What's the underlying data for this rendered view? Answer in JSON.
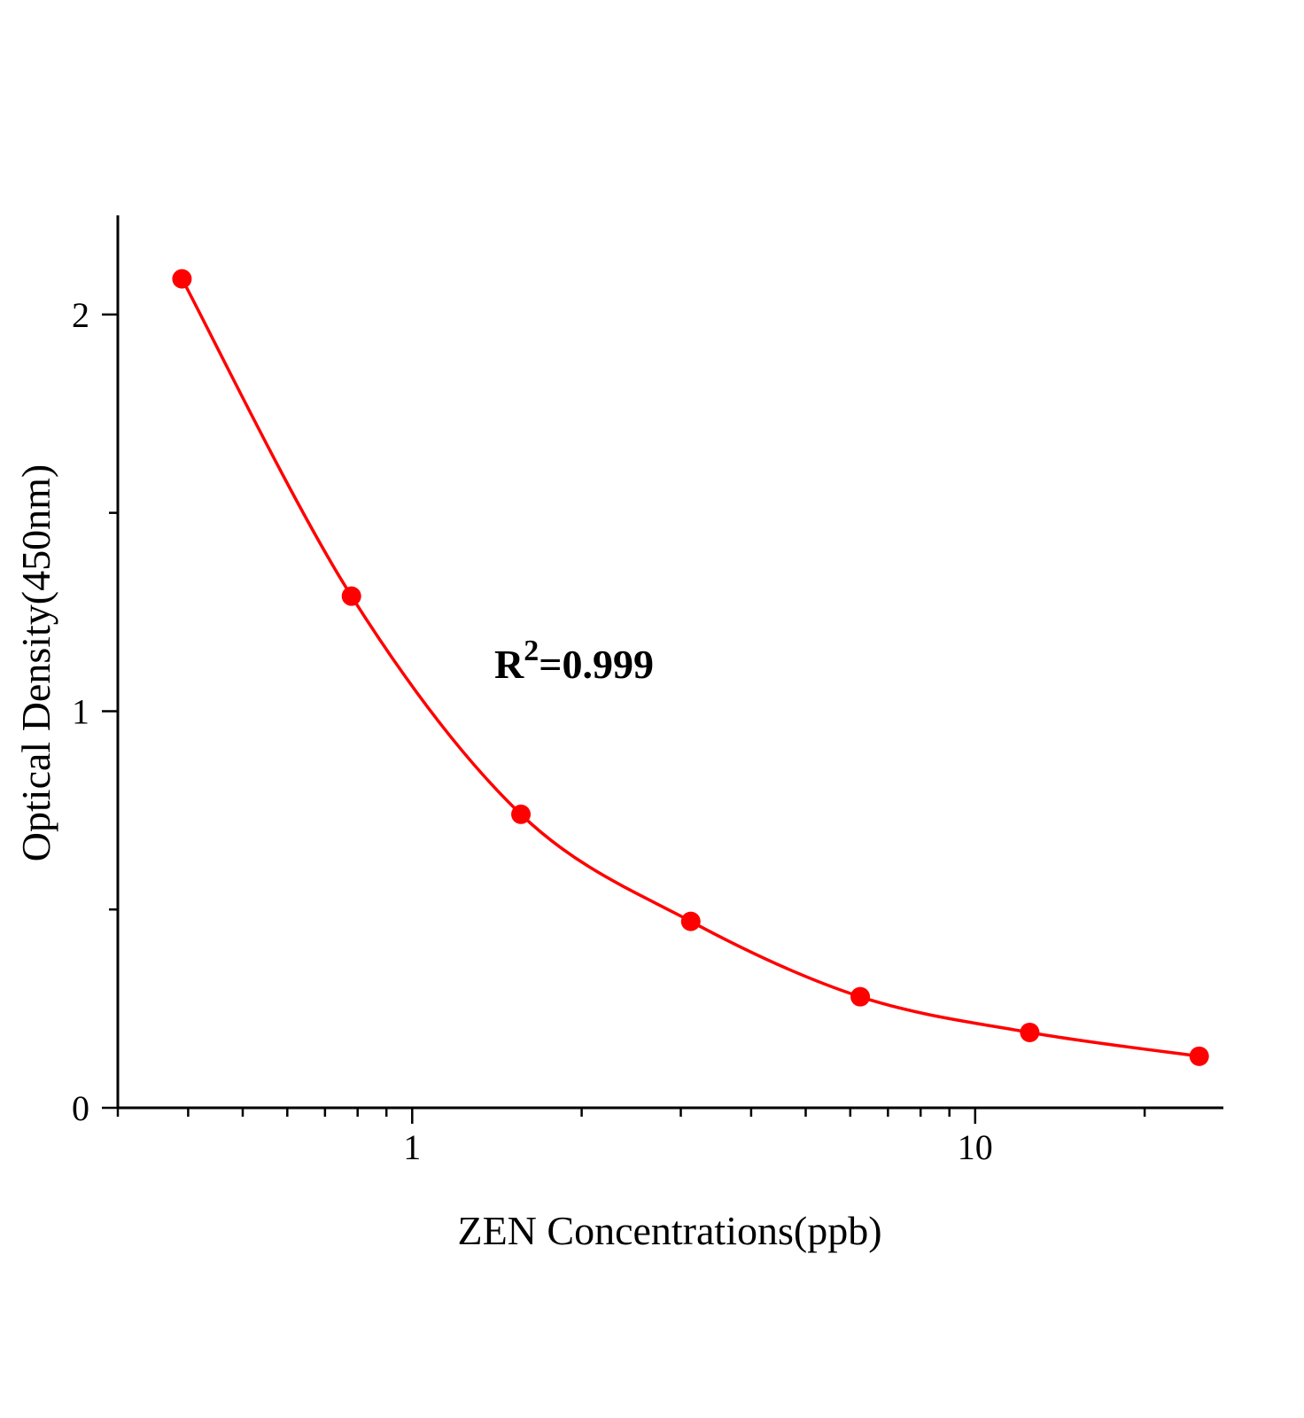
{
  "chart_data": {
    "type": "scatter",
    "title": "",
    "xlabel": "ZEN Concentrations(ppb)",
    "ylabel": "Optical Density(450nm)",
    "xscale": "log",
    "xlim": [
      0.3,
      27.5
    ],
    "ylim": [
      0,
      2.25
    ],
    "xticks": [
      1,
      10
    ],
    "xtick_labels": [
      "1",
      "10"
    ],
    "yticks": [
      0,
      1,
      2
    ],
    "ytick_labels": [
      "0",
      "1",
      "2"
    ],
    "grid": false,
    "annotation": {
      "base": "R",
      "sup": "2",
      "rest": "=0.999"
    },
    "series": [
      {
        "x": [
          0.39,
          0.78,
          1.56,
          3.125,
          6.25,
          12.5,
          25
        ],
        "y": [
          2.09,
          1.29,
          0.74,
          0.47,
          0.28,
          0.19,
          0.13
        ],
        "marker": "circle",
        "fit_line": true,
        "color": "#ff0000"
      }
    ]
  }
}
